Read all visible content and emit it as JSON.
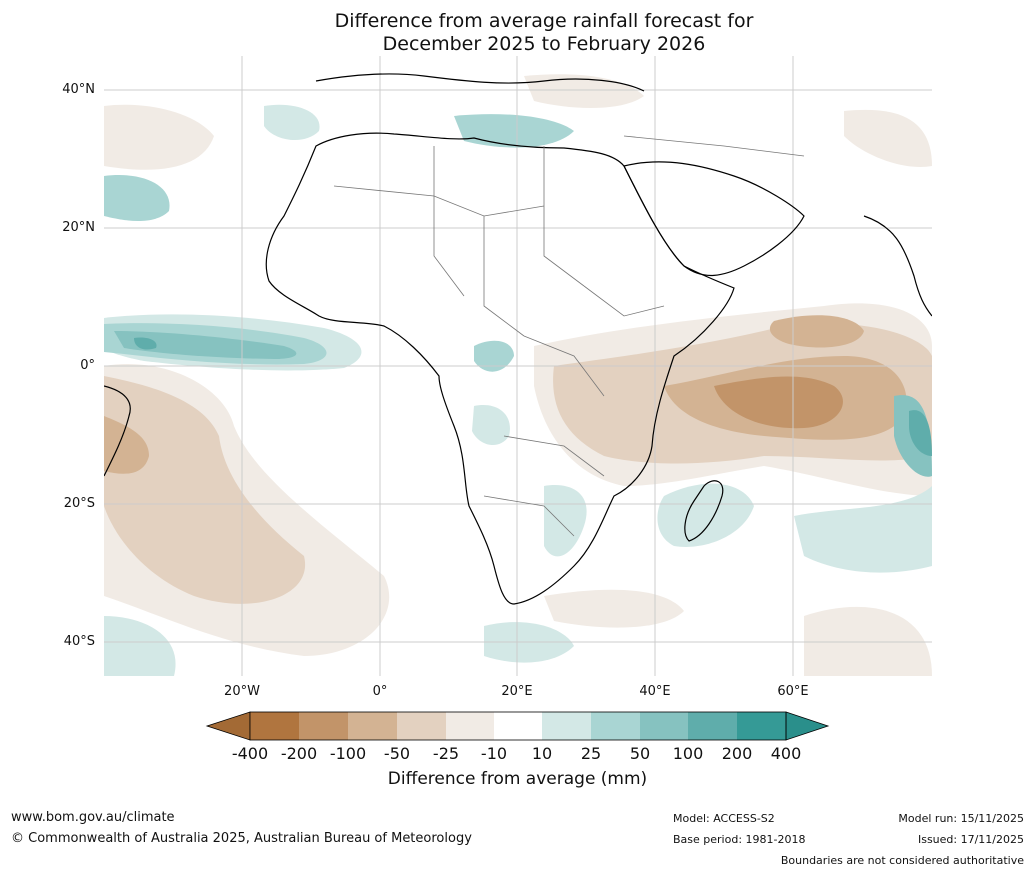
{
  "title": {
    "line1": "Difference from average rainfall forecast for",
    "line2": "December 2025 to February 2026"
  },
  "map": {
    "region": "Africa and surrounding oceans",
    "latitude_labels": [
      "40°N",
      "20°N",
      "0°",
      "20°S",
      "40°S"
    ],
    "longitude_labels": [
      "20°W",
      "0°",
      "20°E",
      "40°E",
      "60°E"
    ]
  },
  "colorbar": {
    "title": "Difference from average (mm)",
    "ticks": [
      "-400",
      "-200",
      "-100",
      "-50",
      "-25",
      "-10",
      "10",
      "25",
      "50",
      "100",
      "200",
      "400"
    ],
    "colors": {
      "below_400": "#a36a35",
      "n400_200": "#b0753f",
      "n200_100": "#c29469",
      "n100_50": "#d3b393",
      "n50_25": "#e3d1c0",
      "n25_10": "#f1ebe5",
      "n10_10": "#ffffff",
      "p10_25": "#d3e8e6",
      "p25_50": "#a9d5d3",
      "p50_100": "#86c2c0",
      "p100_200": "#5fadab",
      "p200_400": "#359a96",
      "above_400": "#2a8f8b"
    }
  },
  "footer": {
    "website": "www.bom.gov.au/climate",
    "copyright": "© Commonwealth of Australia 2025, Australian Bureau of Meteorology",
    "model": "Model: ACCESS-S2",
    "base_period": "Base period: 1981-2018",
    "model_run": "Model run: 15/11/2025",
    "issued": "Issued: 17/11/2025",
    "disclaimer": "Boundaries are not considered authoritative"
  }
}
